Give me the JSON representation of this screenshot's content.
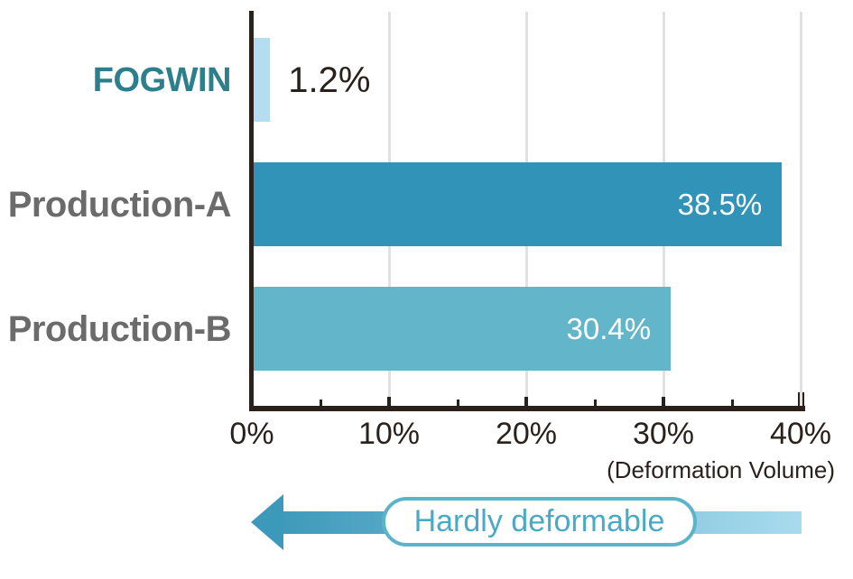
{
  "chart_data": {
    "type": "bar",
    "orientation": "horizontal",
    "categories": [
      "FOGWIN",
      "Production-A",
      "Production-B"
    ],
    "values": [
      1.2,
      38.5,
      30.4
    ],
    "value_labels": [
      "1.2%",
      "38.5%",
      "30.4%"
    ],
    "bar_colors": [
      "#b5ddf1",
      "#3093b7",
      "#63b5ca"
    ],
    "category_label_colors": [
      "#2e7f8c",
      "#6b6b6b",
      "#6b6b6b"
    ],
    "value_label_styles": [
      "outside-dark",
      "inside-white",
      "inside-white"
    ],
    "xlabel": "(Deformation Volume)",
    "xlim": [
      0,
      40
    ],
    "x_major_ticks": [
      0,
      10,
      20,
      30,
      40
    ],
    "x_tick_labels": [
      "0%",
      "10%",
      "20%",
      "30%",
      "40%"
    ],
    "x_minor_ticks": [
      5,
      15,
      25,
      35
    ],
    "gridline_positions": [
      10,
      20,
      30,
      40
    ],
    "grid": true,
    "legend": false,
    "title": ""
  },
  "annotation": {
    "arrow_label": "Hardly deformable",
    "arrow_direction": "left"
  },
  "colors": {
    "axis": "#2b211c",
    "axis_text": "#2b211c",
    "grid": "#e1e1e1",
    "fogwin_accent": "#2e7f8c",
    "gray_label": "#6b6b6b",
    "arrow_dark": "#3d99ba",
    "arrow_light": "#a9dbee",
    "pill_border": "#5cb4ca",
    "pill_text": "#48aac6"
  }
}
